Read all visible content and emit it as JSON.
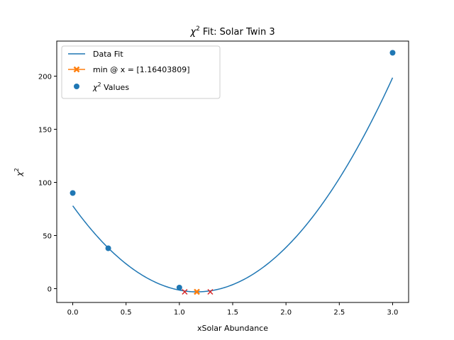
{
  "chart_data": {
    "type": "line",
    "title_prefix": "χ",
    "title_sup": "2",
    "title_rest": " Fit: Solar Twin 3",
    "xlabel": "xSolar Abundance",
    "ylabel_prefix": "χ",
    "ylabel_sup": "2",
    "xlim": [
      -0.15,
      3.15
    ],
    "ylim": [
      -13,
      233
    ],
    "xticks": [
      0.0,
      0.5,
      1.0,
      1.5,
      2.0,
      2.5,
      3.0
    ],
    "xtick_labels": [
      "0.0",
      "0.5",
      "1.0",
      "1.5",
      "2.0",
      "2.5",
      "3.0"
    ],
    "yticks": [
      0,
      50,
      100,
      150,
      200
    ],
    "ytick_labels": [
      "0",
      "50",
      "100",
      "150",
      "200"
    ],
    "grid": false,
    "legend_position": "top-left",
    "series": [
      {
        "name": "Data Fit",
        "kind": "line",
        "color": "#1f77b4",
        "fit": {
          "x_min": 0.0,
          "x_max": 3.0,
          "vertex_x": 1.164,
          "vertex_y": -3.0,
          "a": 59.78
        }
      },
      {
        "name": "min @ x = [1.16403809]",
        "kind": "line-marker",
        "marker": "X",
        "color": "#ff7f0e",
        "x": [
          1.164
        ],
        "y": [
          -3.0
        ]
      },
      {
        "name": "χ2 Values",
        "name_prefix": "χ",
        "name_sup": "2",
        "name_rest": " Values",
        "kind": "scatter",
        "color": "#1f77b4",
        "x": [
          0.0,
          0.333,
          1.0,
          3.0
        ],
        "y": [
          90,
          38,
          1,
          222
        ]
      },
      {
        "kind": "cross-markers",
        "color": "#d62728",
        "x": [
          1.05,
          1.29
        ],
        "y": [
          -3.0,
          -3.0
        ]
      }
    ]
  }
}
